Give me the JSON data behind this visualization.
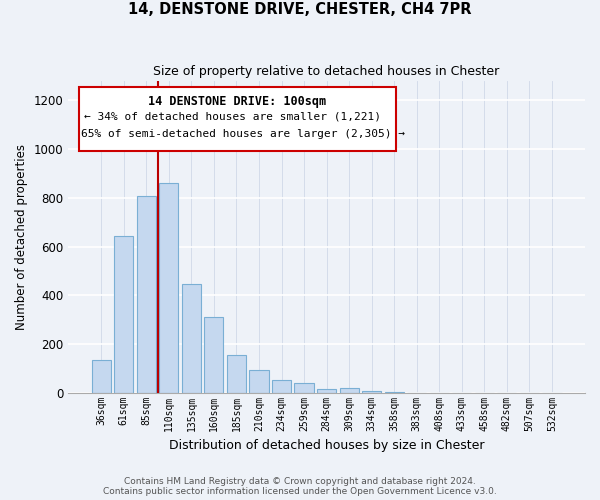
{
  "title1": "14, DENSTONE DRIVE, CHESTER, CH4 7PR",
  "title2": "Size of property relative to detached houses in Chester",
  "xlabel": "Distribution of detached houses by size in Chester",
  "ylabel": "Number of detached properties",
  "bar_color": "#c5d8ef",
  "bar_edge_color": "#7aafd4",
  "categories": [
    "36sqm",
    "61sqm",
    "85sqm",
    "110sqm",
    "135sqm",
    "160sqm",
    "185sqm",
    "210sqm",
    "234sqm",
    "259sqm",
    "284sqm",
    "309sqm",
    "334sqm",
    "358sqm",
    "383sqm",
    "408sqm",
    "433sqm",
    "458sqm",
    "482sqm",
    "507sqm",
    "532sqm"
  ],
  "values": [
    135,
    645,
    808,
    862,
    447,
    310,
    157,
    95,
    52,
    42,
    15,
    20,
    7,
    3,
    0,
    0,
    0,
    2,
    0,
    0,
    0
  ],
  "vline_x": 2.5,
  "vline_color": "#bb0000",
  "annotation_text_line1": "14 DENSTONE DRIVE: 100sqm",
  "annotation_text_line2": "← 34% of detached houses are smaller (1,221)",
  "annotation_text_line3": "65% of semi-detached houses are larger (2,305) →",
  "ylim": [
    0,
    1280
  ],
  "yticks": [
    0,
    200,
    400,
    600,
    800,
    1000,
    1200
  ],
  "footer1": "Contains HM Land Registry data © Crown copyright and database right 2024.",
  "footer2": "Contains public sector information licensed under the Open Government Licence v3.0.",
  "bg_color": "#eef2f8"
}
